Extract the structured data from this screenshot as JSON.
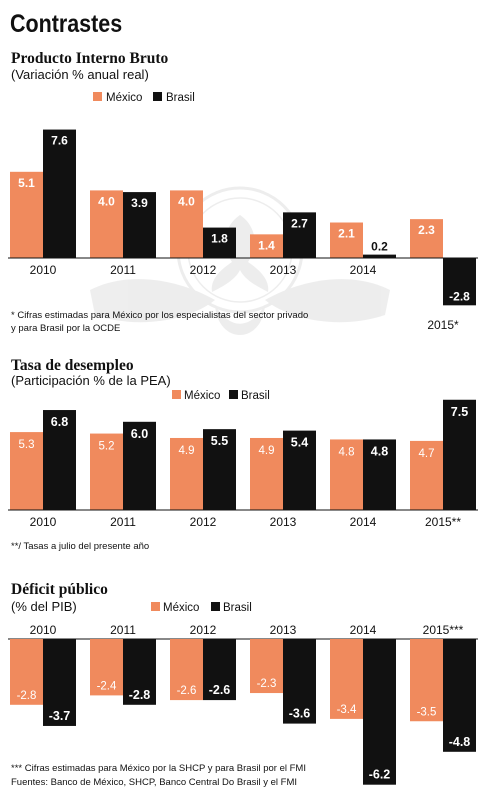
{
  "page_title": "Contrastes",
  "colors": {
    "mexico": "#F08A5D",
    "brasil": "#111111",
    "label_on_dark": "#ffffff",
    "text": "#111111"
  },
  "chart_data": [
    {
      "type": "bar",
      "title": "Producto Interno Bruto",
      "subtitle": "(Variación % anual real)",
      "categories": [
        "2010",
        "2011",
        "2012",
        "2013",
        "2014",
        "2015*"
      ],
      "series": [
        {
          "name": "México",
          "values": [
            5.1,
            4.0,
            4.0,
            1.4,
            2.1,
            2.3
          ]
        },
        {
          "name": "Brasil",
          "values": [
            7.6,
            3.9,
            1.8,
            2.7,
            0.2,
            -2.8
          ]
        }
      ],
      "value_labels": {
        "México": [
          "5.1",
          "4.0",
          "4.0",
          "1.4",
          "2.1",
          "2.3"
        ],
        "Brasil": [
          "7.6",
          "3.9",
          "1.8",
          "2.7",
          "0.2",
          "-2.8"
        ]
      },
      "note": "* Cifras estimadas para México por los especialistas del sector privado",
      "note2": "y para Brasil por la OCDE",
      "legend": "top-right"
    },
    {
      "type": "bar",
      "title": "Tasa de desempleo",
      "subtitle": "(Participación % de la PEA)",
      "categories": [
        "2010",
        "2011",
        "2012",
        "2013",
        "2014",
        "2015**"
      ],
      "series": [
        {
          "name": "México",
          "values": [
            5.3,
            5.2,
            4.9,
            4.9,
            4.8,
            4.7
          ]
        },
        {
          "name": "Brasil",
          "values": [
            6.8,
            6.0,
            5.5,
            5.4,
            4.8,
            7.5
          ]
        }
      ],
      "value_labels": {
        "México": [
          "5.3",
          "5.2",
          "4.9",
          "4.9",
          "4.8",
          "4.7"
        ],
        "Brasil": [
          "6.8",
          "6.0",
          "5.5",
          "5.4",
          "4.8",
          "7.5"
        ]
      },
      "note": "**/ Tasas a julio del presente año",
      "legend": "top-right"
    },
    {
      "type": "bar",
      "title": "Déficit público",
      "subtitle": "(% del PIB)",
      "categories": [
        "2010",
        "2011",
        "2012",
        "2013",
        "2014",
        "2015***"
      ],
      "series": [
        {
          "name": "México",
          "values": [
            -2.8,
            -2.4,
            -2.6,
            -2.3,
            -3.4,
            -3.5
          ]
        },
        {
          "name": "Brasil",
          "values": [
            -3.7,
            -2.8,
            -2.6,
            -3.6,
            -6.2,
            -4.8
          ]
        }
      ],
      "value_labels": {
        "México": [
          "-2.8",
          "-2.4",
          "-2.6",
          "-2.3",
          "-3.4",
          "-3.5"
        ],
        "Brasil": [
          "-3.7",
          "-2.8",
          "-2.6",
          "-3.6",
          "-6.2",
          "-4.8"
        ]
      },
      "note": "*** Cifras estimadas para México por la SHCP y para Brasil por el FMI",
      "legend": "top"
    }
  ],
  "sources": "Fuentes: Banco de México, SHCP, Banco Central Do Brasil y el FMI"
}
